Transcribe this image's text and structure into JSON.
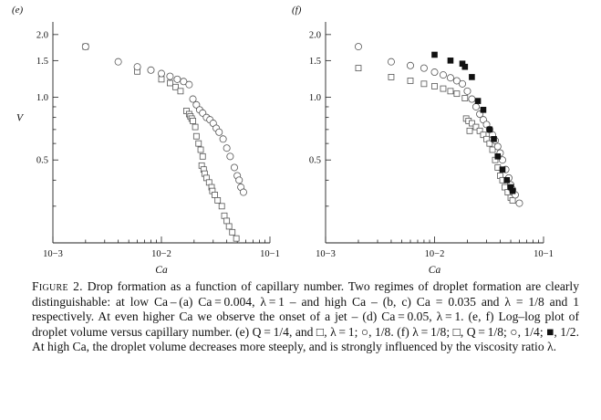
{
  "chart_data": [
    {
      "panel_label": "(e)",
      "type": "scatter",
      "scale": "log-log",
      "xlabel": "Ca",
      "ylabel": "V",
      "xlim": [
        0.001,
        0.1
      ],
      "ylim": [
        0.2,
        2.3
      ],
      "x_tick_labels": [
        "10−3",
        "10−2",
        "10−1"
      ],
      "y_ticks": [
        {
          "value": 2.0,
          "label": "2.0"
        },
        {
          "value": 1.5,
          "label": "1.5"
        },
        {
          "value": 1.0,
          "label": "1.0"
        },
        {
          "value": 0.5,
          "label": "0.5"
        }
      ],
      "grid": false,
      "legend": "none",
      "series": [
        {
          "marker": "square",
          "points": [
            [
              0.002,
              1.75
            ],
            [
              0.006,
              1.33
            ],
            [
              0.01,
              1.22
            ],
            [
              0.012,
              1.17
            ],
            [
              0.0135,
              1.12
            ],
            [
              0.015,
              1.07
            ],
            [
              0.017,
              0.86
            ],
            [
              0.018,
              0.83
            ],
            [
              0.0185,
              0.81
            ],
            [
              0.019,
              0.79
            ],
            [
              0.0195,
              0.77
            ],
            [
              0.0205,
              0.72
            ],
            [
              0.021,
              0.65
            ],
            [
              0.022,
              0.6
            ],
            [
              0.023,
              0.56
            ],
            [
              0.024,
              0.52
            ],
            [
              0.0235,
              0.47
            ],
            [
              0.0245,
              0.45
            ],
            [
              0.025,
              0.43
            ],
            [
              0.026,
              0.41
            ],
            [
              0.0275,
              0.39
            ],
            [
              0.029,
              0.37
            ],
            [
              0.0295,
              0.355
            ],
            [
              0.031,
              0.34
            ],
            [
              0.033,
              0.32
            ],
            [
              0.036,
              0.3
            ],
            [
              0.038,
              0.27
            ],
            [
              0.04,
              0.255
            ],
            [
              0.042,
              0.24
            ],
            [
              0.045,
              0.225
            ],
            [
              0.049,
              0.21
            ]
          ]
        },
        {
          "marker": "circle",
          "points": [
            [
              0.002,
              1.75
            ],
            [
              0.004,
              1.48
            ],
            [
              0.006,
              1.4
            ],
            [
              0.008,
              1.35
            ],
            [
              0.01,
              1.3
            ],
            [
              0.012,
              1.26
            ],
            [
              0.014,
              1.22
            ],
            [
              0.016,
              1.19
            ],
            [
              0.018,
              1.15
            ],
            [
              0.0195,
              0.98
            ],
            [
              0.021,
              0.92
            ],
            [
              0.0225,
              0.87
            ],
            [
              0.024,
              0.84
            ],
            [
              0.026,
              0.8
            ],
            [
              0.028,
              0.78
            ],
            [
              0.03,
              0.75
            ],
            [
              0.032,
              0.71
            ],
            [
              0.034,
              0.68
            ],
            [
              0.037,
              0.63
            ],
            [
              0.04,
              0.57
            ],
            [
              0.043,
              0.52
            ],
            [
              0.047,
              0.46
            ],
            [
              0.05,
              0.42
            ],
            [
              0.052,
              0.4
            ],
            [
              0.054,
              0.37
            ],
            [
              0.057,
              0.35
            ]
          ]
        }
      ]
    },
    {
      "panel_label": "(f)",
      "type": "scatter",
      "scale": "log-log",
      "xlabel": "Ca",
      "ylabel": "",
      "xlim": [
        0.001,
        0.1
      ],
      "ylim": [
        0.2,
        2.3
      ],
      "x_tick_labels": [
        "10−3",
        "10−2",
        "10−1"
      ],
      "y_ticks": [
        {
          "value": 2.0,
          "label": "2.0"
        },
        {
          "value": 1.5,
          "label": "1.5"
        },
        {
          "value": 1.0,
          "label": "1.0"
        },
        {
          "value": 0.5,
          "label": "0.5"
        }
      ],
      "grid": false,
      "legend": "none",
      "series": [
        {
          "marker": "square",
          "points": [
            [
              0.002,
              1.38
            ],
            [
              0.004,
              1.25
            ],
            [
              0.006,
              1.2
            ],
            [
              0.008,
              1.16
            ],
            [
              0.01,
              1.13
            ],
            [
              0.012,
              1.1
            ],
            [
              0.014,
              1.07
            ],
            [
              0.016,
              1.04
            ],
            [
              0.019,
              0.99
            ],
            [
              0.0195,
              0.79
            ],
            [
              0.0205,
              0.77
            ],
            [
              0.021,
              0.69
            ],
            [
              0.022,
              0.75
            ],
            [
              0.024,
              0.72
            ],
            [
              0.026,
              0.69
            ],
            [
              0.028,
              0.66
            ],
            [
              0.03,
              0.63
            ],
            [
              0.032,
              0.6
            ],
            [
              0.034,
              0.56
            ],
            [
              0.036,
              0.5
            ],
            [
              0.038,
              0.46
            ],
            [
              0.04,
              0.42
            ],
            [
              0.042,
              0.4
            ],
            [
              0.044,
              0.37
            ],
            [
              0.047,
              0.35
            ],
            [
              0.05,
              0.33
            ],
            [
              0.052,
              0.32
            ]
          ]
        },
        {
          "marker": "circle",
          "points": [
            [
              0.002,
              1.75
            ],
            [
              0.004,
              1.48
            ],
            [
              0.006,
              1.42
            ],
            [
              0.008,
              1.38
            ],
            [
              0.01,
              1.32
            ],
            [
              0.012,
              1.28
            ],
            [
              0.014,
              1.24
            ],
            [
              0.016,
              1.2
            ],
            [
              0.018,
              1.16
            ],
            [
              0.02,
              1.07
            ],
            [
              0.022,
              0.98
            ],
            [
              0.024,
              0.9
            ],
            [
              0.026,
              0.83
            ],
            [
              0.028,
              0.78
            ],
            [
              0.03,
              0.74
            ],
            [
              0.032,
              0.7
            ],
            [
              0.034,
              0.66
            ],
            [
              0.036,
              0.62
            ],
            [
              0.038,
              0.58
            ],
            [
              0.04,
              0.54
            ],
            [
              0.042,
              0.5
            ],
            [
              0.045,
              0.45
            ],
            [
              0.048,
              0.41
            ],
            [
              0.05,
              0.38
            ],
            [
              0.052,
              0.36
            ],
            [
              0.055,
              0.34
            ],
            [
              0.06,
              0.31
            ]
          ]
        },
        {
          "marker": "filled-square",
          "points": [
            [
              0.01,
              1.6
            ],
            [
              0.014,
              1.5
            ],
            [
              0.018,
              1.45
            ],
            [
              0.019,
              1.4
            ],
            [
              0.022,
              1.25
            ],
            [
              0.025,
              0.96
            ],
            [
              0.028,
              0.87
            ],
            [
              0.032,
              0.7
            ],
            [
              0.035,
              0.63
            ],
            [
              0.038,
              0.52
            ],
            [
              0.042,
              0.45
            ],
            [
              0.046,
              0.4
            ],
            [
              0.05,
              0.37
            ],
            [
              0.052,
              0.355
            ]
          ]
        }
      ]
    }
  ],
  "caption": {
    "prefix": "Figure 2.",
    "text": " Drop formation as a function of capillary number. Two regimes of droplet formation are clearly distinguishable: at low Ca – (a) Ca = 0.004, λ = 1 – and high Ca – (b, c) Ca = 0.035 and λ = 1/8 and 1 respectively. At even higher Ca we observe the onset of a jet – (d) Ca = 0.05, λ = 1. (e, f) Log–log plot of droplet volume versus capillary number. (e) Q = 1/4, and □, λ = 1; ○, 1/8. (f) λ = 1/8; □, Q = 1/8; ○, 1/4; ■, 1/2. At high Ca, the droplet volume decreases more steeply, and is strongly influenced by the viscosity ratio λ."
  }
}
